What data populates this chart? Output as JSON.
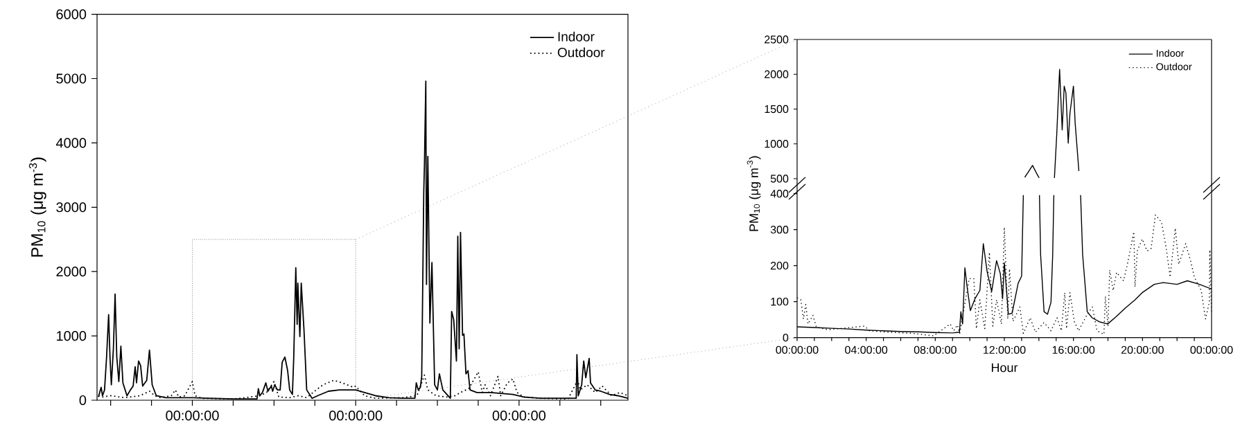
{
  "chart_data": [
    {
      "type": "line",
      "ylabel": "PM$_{10}$ (μg m$^{-3}$)",
      "xlim": [
        "2000-01-01T10:00",
        "2000-01-04T16:00"
      ],
      "ylim": [
        0,
        6000
      ],
      "xticks": [
        {
          "value": "2000-01-01T12:00",
          "label": null
        },
        {
          "value": "2000-01-01T18:00",
          "label": null
        },
        {
          "value": "2000-01-02T00:00",
          "label": "00:00:00"
        },
        {
          "value": "2000-01-02T06:00",
          "label": null
        },
        {
          "value": "2000-01-02T12:00",
          "label": null
        },
        {
          "value": "2000-01-02T18:00",
          "label": null
        },
        {
          "value": "2000-01-03T00:00",
          "label": "00:00:00"
        },
        {
          "value": "2000-01-03T06:00",
          "label": null
        },
        {
          "value": "2000-01-03T12:00",
          "label": null
        },
        {
          "value": "2000-01-03T18:00",
          "label": null
        },
        {
          "value": "2000-01-04T00:00",
          "label": "00:00:00"
        },
        {
          "value": "2000-01-04T06:00",
          "label": null
        },
        {
          "value": "2000-01-04T12:00",
          "label": null
        }
      ],
      "yticks": [
        0,
        1000,
        2000,
        3000,
        4000,
        5000,
        6000
      ],
      "legend": "top right",
      "series": [
        {
          "name": "Indoor",
          "color": "#000000",
          "line_style": "solid",
          "x": [
            "2000-01-01T10:12",
            "2000-01-01T10:36",
            "2000-01-01T10:48",
            "2000-01-01T11:06",
            "2000-01-01T11:24",
            "2000-01-01T11:42",
            "2000-01-01T11:54",
            "2000-01-01T12:06",
            "2000-01-01T12:24",
            "2000-01-01T12:39",
            "2000-01-01T12:54",
            "2000-01-01T13:12",
            "2000-01-01T13:30",
            "2000-01-01T13:48",
            "2000-01-01T14:24",
            "2000-01-01T14:54",
            "2000-01-01T15:18",
            "2000-01-01T15:36",
            "2000-01-01T15:48",
            "2000-01-01T16:06",
            "2000-01-01T16:24",
            "2000-01-01T16:42",
            "2000-01-01T17:18",
            "2000-01-01T17:42",
            "2000-01-01T18:06",
            "2000-01-01T18:42",
            "2000-01-01T20:06",
            "2000-01-01T22:06",
            "2000-01-02T00:06",
            "2000-01-02T02:12",
            "2000-01-02T06:12",
            "2000-01-02T09:30",
            "2000-01-02T09:42",
            "2000-01-02T09:54",
            "2000-01-02T10:18",
            "2000-01-02T10:48",
            "2000-01-02T11:06",
            "2000-01-02T11:36",
            "2000-01-02T11:48",
            "2000-01-02T12:06",
            "2000-01-02T12:30",
            "2000-01-02T12:54",
            "2000-01-02T13:12",
            "2000-01-02T13:36",
            "2000-01-02T14:00",
            "2000-01-02T14:18",
            "2000-01-02T14:42",
            "2000-01-02T14:54",
            "2000-01-02T15:12",
            "2000-01-02T15:24",
            "2000-01-02T15:30",
            "2000-01-02T15:48",
            "2000-01-02T16:00",
            "2000-01-02T16:24",
            "2000-01-02T16:48",
            "2000-01-02T17:36",
            "2000-01-02T18:24",
            "2000-01-02T20:00",
            "2000-01-02T21:36",
            "2000-01-03T00:00",
            "2000-01-03T01:18",
            "2000-01-03T02:54",
            "2000-01-03T04:54",
            "2000-01-03T06:54",
            "2000-01-03T08:42",
            "2000-01-03T08:54",
            "2000-01-03T09:12",
            "2000-01-03T09:30",
            "2000-01-03T09:42",
            "2000-01-03T10:00",
            "2000-01-03T10:06",
            "2000-01-03T10:18",
            "2000-01-03T10:24",
            "2000-01-03T10:36",
            "2000-01-03T10:54",
            "2000-01-03T11:12",
            "2000-01-03T11:36",
            "2000-01-03T12:00",
            "2000-01-03T12:18",
            "2000-01-03T12:48",
            "2000-01-03T13:54",
            "2000-01-03T14:06",
            "2000-01-03T14:24",
            "2000-01-03T14:48",
            "2000-01-03T15:00",
            "2000-01-03T15:12",
            "2000-01-03T15:24",
            "2000-01-03T15:42",
            "2000-01-03T15:54",
            "2000-01-03T16:12",
            "2000-01-03T16:30",
            "2000-01-03T16:48",
            "2000-01-03T17:48",
            "2000-01-03T19:48",
            "2000-01-03T23:06",
            "2000-01-04T00:42",
            "2000-01-04T03:06",
            "2000-01-04T08:24",
            "2000-01-04T08:30",
            "2000-01-04T08:42",
            "2000-01-04T09:12",
            "2000-01-04T09:30",
            "2000-01-04T09:48",
            "2000-01-04T10:18",
            "2000-01-04T10:30",
            "2000-01-04T11:12",
            "2000-01-04T12:00",
            "2000-01-04T13:18",
            "2000-01-04T14:30",
            "2000-01-04T16:00"
          ],
          "values": [
            50,
            200,
            70,
            160,
            670,
            1330,
            670,
            240,
            800,
            1650,
            670,
            290,
            840,
            270,
            70,
            160,
            220,
            520,
            270,
            610,
            540,
            220,
            310,
            780,
            240,
            70,
            40,
            40,
            40,
            30,
            20,
            20,
            180,
            70,
            120,
            270,
            140,
            220,
            140,
            240,
            160,
            160,
            590,
            670,
            460,
            160,
            90,
            670,
            2060,
            1180,
            1820,
            990,
            1820,
            1100,
            160,
            30,
            70,
            140,
            160,
            160,
            120,
            70,
            40,
            30,
            30,
            270,
            160,
            200,
            370,
            3230,
            3660,
            4960,
            1800,
            3790,
            1200,
            2140,
            240,
            160,
            410,
            160,
            30,
            1380,
            1250,
            610,
            2550,
            800,
            2610,
            1010,
            1030,
            410,
            460,
            160,
            120,
            120,
            90,
            50,
            30,
            30,
            710,
            70,
            240,
            610,
            350,
            650,
            270,
            160,
            140,
            90,
            70,
            30
          ]
        },
        {
          "name": "Outdoor",
          "color": "#000000",
          "line_style": "dotted",
          "x": [
            "2000-01-01T10:12",
            "2000-01-01T10:48",
            "2000-01-01T12:00",
            "2000-01-01T14:00",
            "2000-01-01T16:18",
            "2000-01-01T17:42",
            "2000-01-01T18:30",
            "2000-01-01T19:18",
            "2000-01-01T20:54",
            "2000-01-01T21:30",
            "2000-01-01T22:00",
            "2000-01-01T22:54",
            "2000-01-02T00:00",
            "2000-01-02T00:24",
            "2000-01-02T01:24",
            "2000-01-02T06:12",
            "2000-01-02T09:54",
            "2000-01-02T10:54",
            "2000-01-02T12:00",
            "2000-01-02T12:42",
            "2000-01-02T14:18",
            "2000-01-02T15:36",
            "2000-01-02T16:48",
            "2000-01-02T18:12",
            "2000-01-02T19:12",
            "2000-01-02T20:48",
            "2000-01-02T22:00",
            "2000-01-02T23:42",
            "2000-01-03T00:00",
            "2000-01-03T01:18",
            "2000-01-03T02:54",
            "2000-01-03T06:54",
            "2000-01-03T09:00",
            "2000-01-03T10:06",
            "2000-01-03T10:36",
            "2000-01-03T11:48",
            "2000-01-03T13:24",
            "2000-01-03T14:36",
            "2000-01-03T15:24",
            "2000-01-03T16:36",
            "2000-01-03T18:00",
            "2000-01-03T18:36",
            "2000-01-03T19:00",
            "2000-01-03T19:48",
            "2000-01-03T20:54",
            "2000-01-03T21:18",
            "2000-01-03T22:18",
            "2000-01-03T23:06",
            "2000-01-03T23:42",
            "2000-01-04T00:42",
            "2000-01-04T03:06",
            "2000-01-04T07:12",
            "2000-01-04T08:36",
            "2000-01-04T09:00",
            "2000-01-04T10:00",
            "2000-01-04T11:12",
            "2000-01-04T12:12",
            "2000-01-04T13:36",
            "2000-01-04T14:48",
            "2000-01-04T16:00"
          ],
          "values": [
            70,
            50,
            70,
            40,
            70,
            140,
            70,
            40,
            70,
            160,
            50,
            70,
            290,
            70,
            30,
            20,
            70,
            120,
            290,
            50,
            40,
            70,
            40,
            160,
            240,
            310,
            270,
            200,
            220,
            70,
            30,
            40,
            70,
            390,
            160,
            70,
            50,
            70,
            120,
            180,
            440,
            120,
            240,
            70,
            370,
            70,
            270,
            330,
            120,
            50,
            30,
            20,
            310,
            160,
            240,
            120,
            220,
            70,
            120,
            70
          ]
        }
      ]
    },
    {
      "type": "line",
      "xlim": [
        "2000-01-02T00:00",
        "2000-01-03T00:00"
      ],
      "ylim": [
        500,
        2500
      ],
      "yticks": [
        500,
        1000,
        1500,
        2000,
        2500
      ],
      "tick_labels": "y",
      "legend": "top right",
      "series": [
        {
          "name": "Indoor",
          "color": "#000000",
          "line_style": "solid",
          "x": [
            "2000-01-02T13:11",
            "2000-01-02T13:21",
            "2000-01-02T13:38",
            "2000-01-02T13:54",
            "2000-01-02T14:01",
            "2000-01-02T14:27",
            "2000-01-02T14:54",
            "2000-01-02T15:02",
            "2000-01-02T15:12",
            "2000-01-02T15:21",
            "2000-01-02T15:28",
            "2000-01-02T15:34",
            "2000-01-02T15:42",
            "2000-01-02T15:48",
            "2000-01-02T16:00",
            "2000-01-02T16:06",
            "2000-01-02T16:19"
          ],
          "values": [
            520,
            580,
            690,
            560,
            510,
            null,
            510,
            1130,
            2070,
            1200,
            1830,
            1730,
            1010,
            1440,
            1830,
            1300,
            610
          ]
        },
        {
          "name": "Outdoor",
          "color": "#000000",
          "line_style": "dotted"
        }
      ]
    },
    {
      "type": "line",
      "xlabel": "Hour",
      "ylabel": "PM$_{10}$ (μg m$^{-3}$)",
      "xlim": [
        "2000-01-02T00:00",
        "2000-01-03T00:00"
      ],
      "ylim": [
        0,
        400
      ],
      "xticks": [
        {
          "value": "2000-01-02T00:00",
          "label": "00:00:00"
        },
        {
          "value": "2000-01-02T01:00",
          "label": null
        },
        {
          "value": "2000-01-02T02:00",
          "label": null
        },
        {
          "value": "2000-01-02T03:00",
          "label": null
        },
        {
          "value": "2000-01-02T04:00",
          "label": "04:00:00"
        },
        {
          "value": "2000-01-02T05:00",
          "label": null
        },
        {
          "value": "2000-01-02T06:00",
          "label": null
        },
        {
          "value": "2000-01-02T07:00",
          "label": null
        },
        {
          "value": "2000-01-02T08:00",
          "label": "08:00:00"
        },
        {
          "value": "2000-01-02T09:00",
          "label": null
        },
        {
          "value": "2000-01-02T10:00",
          "label": null
        },
        {
          "value": "2000-01-02T11:00",
          "label": null
        },
        {
          "value": "2000-01-02T12:00",
          "label": "12:00:00"
        },
        {
          "value": "2000-01-02T13:00",
          "label": null
        },
        {
          "value": "2000-01-02T14:00",
          "label": null
        },
        {
          "value": "2000-01-02T15:00",
          "label": null
        },
        {
          "value": "2000-01-02T16:00",
          "label": "16:00:00"
        },
        {
          "value": "2000-01-02T17:00",
          "label": null
        },
        {
          "value": "2000-01-02T18:00",
          "label": null
        },
        {
          "value": "2000-01-02T19:00",
          "label": null
        },
        {
          "value": "2000-01-02T20:00",
          "label": "20:00:00"
        },
        {
          "value": "2000-01-02T21:00",
          "label": null
        },
        {
          "value": "2000-01-02T22:00",
          "label": null
        },
        {
          "value": "2000-01-02T23:00",
          "label": null
        },
        {
          "value": "2000-01-03T00:00",
          "label": "00:00:00"
        }
      ],
      "yticks": [
        0,
        100,
        200,
        300,
        400
      ],
      "series": [
        {
          "color": "#000000",
          "line_style": "solid",
          "x": [
            "2000-01-02T00:00",
            "2000-01-02T01:00",
            "2000-01-02T02:00",
            "2000-01-02T03:00",
            "2000-01-02T04:00",
            "2000-01-02T05:00",
            "2000-01-02T06:00",
            "2000-01-02T07:00",
            "2000-01-02T08:00",
            "2000-01-02T09:00",
            "2000-01-02T09:24",
            "2000-01-02T09:29",
            "2000-01-02T09:35",
            "2000-01-02T09:43",
            "2000-01-02T09:50",
            "2000-01-02T10:02",
            "2000-01-02T10:18",
            "2000-01-02T10:35",
            "2000-01-02T10:47",
            "2000-01-02T11:00",
            "2000-01-02T11:16",
            "2000-01-02T11:33",
            "2000-01-02T11:46",
            "2000-01-02T11:54",
            "2000-01-02T12:00",
            "2000-01-02T12:14",
            "2000-01-02T12:27",
            "2000-01-02T12:48",
            "2000-01-02T13:00",
            "2000-01-02T13:06",
            "2000-01-02T13:36",
            "2000-01-02T14:02",
            "2000-01-02T14:06",
            "2000-01-02T14:18",
            "2000-01-02T14:30",
            "2000-01-02T14:42",
            "2000-01-02T14:48",
            "2000-01-02T14:52",
            "2000-01-02T15:36",
            "2000-01-02T16:25",
            "2000-01-02T16:32",
            "2000-01-02T16:48",
            "2000-01-02T17:05",
            "2000-01-02T17:30",
            "2000-01-02T17:59",
            "2000-01-02T18:28",
            "2000-01-02T19:00",
            "2000-01-02T19:34",
            "2000-01-02T19:59",
            "2000-01-02T20:41",
            "2000-01-02T21:12",
            "2000-01-02T22:00",
            "2000-01-02T22:36",
            "2000-01-02T23:18",
            "2000-01-03T00:00"
          ],
          "values": [
            30,
            28,
            26,
            24,
            21,
            19,
            17,
            16,
            14,
            13,
            15,
            72,
            38,
            194,
            145,
            75,
            108,
            131,
            261,
            184,
            128,
            214,
            178,
            108,
            208,
            65,
            68,
            151,
            171,
            396,
            null,
            396,
            231,
            72,
            65,
            98,
            231,
            396,
            null,
            396,
            231,
            72,
            55,
            44,
            38,
            58,
            82,
            105,
            125,
            148,
            153,
            148,
            158,
            148,
            135
          ]
        },
        {
          "color": "#000000",
          "line_style": "dotted",
          "x": [
            "2000-01-02T00:00",
            "2000-01-02T00:13",
            "2000-01-02T00:22",
            "2000-01-02T00:30",
            "2000-01-02T00:38",
            "2000-01-02T00:55",
            "2000-01-02T01:07",
            "2000-01-02T01:48",
            "2000-01-02T03:54",
            "2000-01-02T04:12",
            "2000-01-02T05:18",
            "2000-01-02T06:39",
            "2000-01-02T07:54",
            "2000-01-02T08:52",
            "2000-01-02T09:04",
            "2000-01-02T09:17",
            "2000-01-02T09:25",
            "2000-01-02T09:58",
            "2000-01-02T10:14",
            "2000-01-02T10:23",
            "2000-01-02T10:35",
            "2000-01-02T10:52",
            "2000-01-02T11:08",
            "2000-01-02T11:20",
            "2000-01-02T11:33",
            "2000-01-02T11:50",
            "2000-01-02T12:00",
            "2000-01-02T12:12",
            "2000-01-02T12:18",
            "2000-01-02T12:30",
            "2000-01-02T12:54",
            "2000-01-02T13:06",
            "2000-01-02T13:30",
            "2000-01-02T13:48",
            "2000-01-02T14:18",
            "2000-01-02T14:42",
            "2000-01-02T15:03",
            "2000-01-02T15:18",
            "2000-01-02T15:30",
            "2000-01-02T15:36",
            "2000-01-02T15:48",
            "2000-01-02T16:03",
            "2000-01-02T16:18",
            "2000-01-02T16:48",
            "2000-01-02T17:06",
            "2000-01-02T17:22",
            "2000-01-02T17:46",
            "2000-01-02T17:51",
            "2000-01-02T18:00",
            "2000-01-02T18:06",
            "2000-01-02T18:18",
            "2000-01-02T18:30",
            "2000-01-02T18:54",
            "2000-01-02T19:06",
            "2000-01-02T19:30",
            "2000-01-02T19:34",
            "2000-01-02T19:42",
            "2000-01-02T19:59",
            "2000-01-02T20:16",
            "2000-01-02T20:30",
            "2000-01-02T20:45",
            "2000-01-02T21:06",
            "2000-01-02T21:22",
            "2000-01-02T21:36",
            "2000-01-02T21:54",
            "2000-01-02T22:06",
            "2000-01-02T22:30",
            "2000-01-02T22:48",
            "2000-01-02T23:00",
            "2000-01-02T23:24",
            "2000-01-02T23:39",
            "2000-01-02T23:52",
            "2000-01-02T23:54",
            "2000-01-03T00:00"
          ],
          "values": [
            111,
            105,
            52,
            92,
            38,
            62,
            29,
            22,
            32,
            19,
            15,
            12,
            5,
            38,
            19,
            35,
            12,
            164,
            164,
            25,
            105,
            25,
            237,
            32,
            105,
            38,
            307,
            52,
            191,
            45,
            85,
            12,
            55,
            15,
            42,
            19,
            55,
            19,
            125,
            25,
            125,
            45,
            19,
            65,
            85,
            19,
            9,
            115,
            32,
            188,
            131,
            181,
            158,
            198,
            294,
            141,
            241,
            274,
            241,
            248,
            341,
            321,
            251,
            168,
            304,
            204,
            261,
            211,
            168,
            131,
            52,
            98,
            244,
            65
          ]
        }
      ]
    }
  ]
}
